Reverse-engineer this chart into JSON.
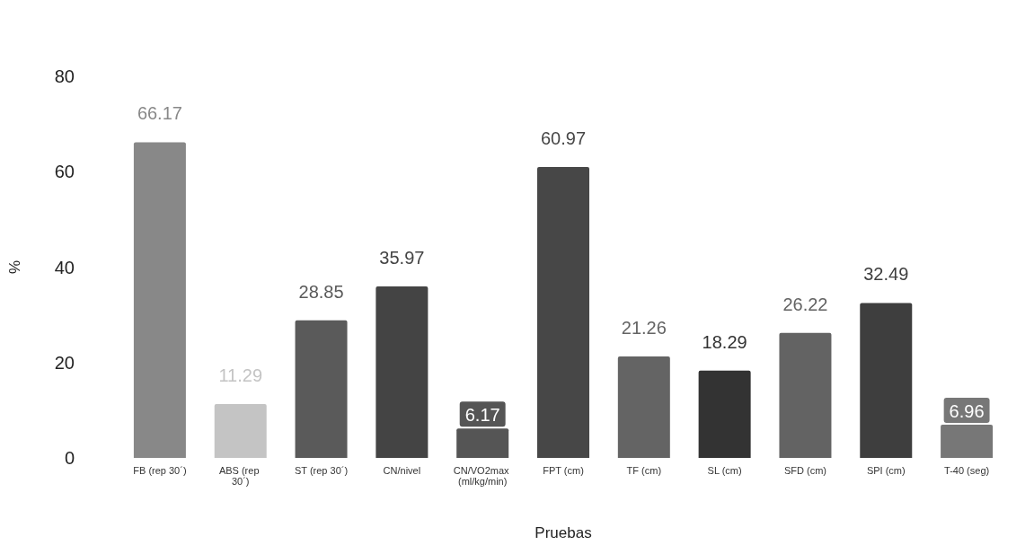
{
  "chart_data": {
    "type": "bar",
    "xlabel": "Pruebas",
    "ylabel": "%",
    "categories": [
      "FB (rep 30´)",
      "ABS (rep 30´)",
      "ST (rep 30´)",
      "CN/nivel",
      "CN/VO2max (ml/kg/min)",
      "FPT (cm)",
      "TF (cm)",
      "SL (cm)",
      "SFD (cm)",
      "SPI (cm)",
      "T-40 (seg)"
    ],
    "values": [
      66.17,
      11.29,
      28.85,
      35.97,
      6.17,
      60.97,
      21.26,
      18.29,
      26.22,
      32.49,
      6.96
    ],
    "colors": [
      "#888888",
      "#c4c4c4",
      "#5a5a5a",
      "#444444",
      "#555555",
      "#474747",
      "#646464",
      "#333333",
      "#636363",
      "#3e3e3e",
      "#777777"
    ],
    "ylim": [
      0,
      80
    ],
    "yticks": [
      0,
      20,
      40,
      60,
      80
    ],
    "data_labels": true
  }
}
